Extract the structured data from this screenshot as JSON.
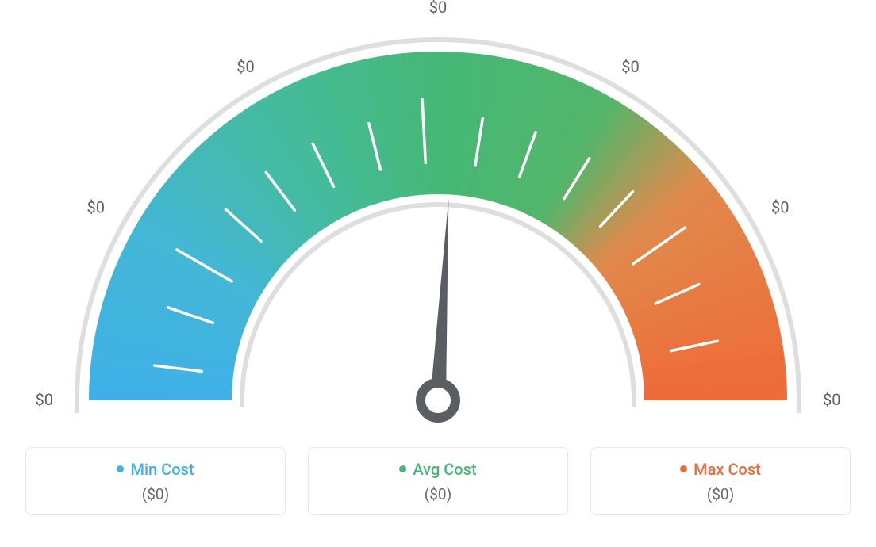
{
  "gauge": {
    "type": "gauge",
    "background_color": "#ffffff",
    "outer_ring_color": "#dddedf",
    "outer_ring_width": 6,
    "ring_outer_radius": 440,
    "ring_inner_radius": 260,
    "needle_color": "#5a5e63",
    "needle_angle_deg": 87,
    "needle_length": 255,
    "needle_base_radius": 22,
    "needle_base_stroke": 12,
    "color_stops": [
      {
        "angle": 180,
        "color": "#3fb0e8"
      },
      {
        "angle": 150,
        "color": "#43b7d5"
      },
      {
        "angle": 120,
        "color": "#44bb9e"
      },
      {
        "angle": 90,
        "color": "#45b876"
      },
      {
        "angle": 60,
        "color": "#53b66b"
      },
      {
        "angle": 40,
        "color": "#e08a4d"
      },
      {
        "angle": 0,
        "color": "#ef6a37"
      }
    ],
    "tick_color": "#ffffff",
    "tick_width": 3.5,
    "tick_inner_radius": 300,
    "tick_outer_radius_major": 380,
    "tick_outer_radius_minor": 360,
    "ticks": [
      {
        "angle": 173,
        "major": false
      },
      {
        "angle": 161,
        "major": false
      },
      {
        "angle": 150,
        "major": true
      },
      {
        "angle": 138,
        "major": false
      },
      {
        "angle": 127,
        "major": false
      },
      {
        "angle": 116,
        "major": false
      },
      {
        "angle": 104,
        "major": false
      },
      {
        "angle": 93,
        "major": true
      },
      {
        "angle": 81,
        "major": false
      },
      {
        "angle": 70,
        "major": false
      },
      {
        "angle": 58,
        "major": false
      },
      {
        "angle": 47,
        "major": false
      },
      {
        "angle": 35,
        "major": true
      },
      {
        "angle": 24,
        "major": false
      },
      {
        "angle": 12,
        "major": false
      }
    ],
    "scale_label_radius": 485,
    "scale_label_color": "#5b6066",
    "scale_label_fontsize": 20,
    "scale_labels": [
      {
        "angle": 180,
        "text": "$0"
      },
      {
        "angle": 150,
        "text": "$0"
      },
      {
        "angle": 120,
        "text": "$0"
      },
      {
        "angle": 90,
        "text": "$0"
      },
      {
        "angle": 60,
        "text": "$0"
      },
      {
        "angle": 30,
        "text": "$0"
      },
      {
        "angle": 0,
        "text": "$0"
      }
    ]
  },
  "legend": {
    "border_color": "#e6e6e6",
    "border_radius": 8,
    "value_color": "#666a6f",
    "items": [
      {
        "label": "Min Cost",
        "color": "#3fb0e8",
        "value": "($0)"
      },
      {
        "label": "Avg Cost",
        "color": "#45b876",
        "value": "($0)"
      },
      {
        "label": "Max Cost",
        "color": "#ef6a37",
        "value": "($0)"
      }
    ]
  }
}
